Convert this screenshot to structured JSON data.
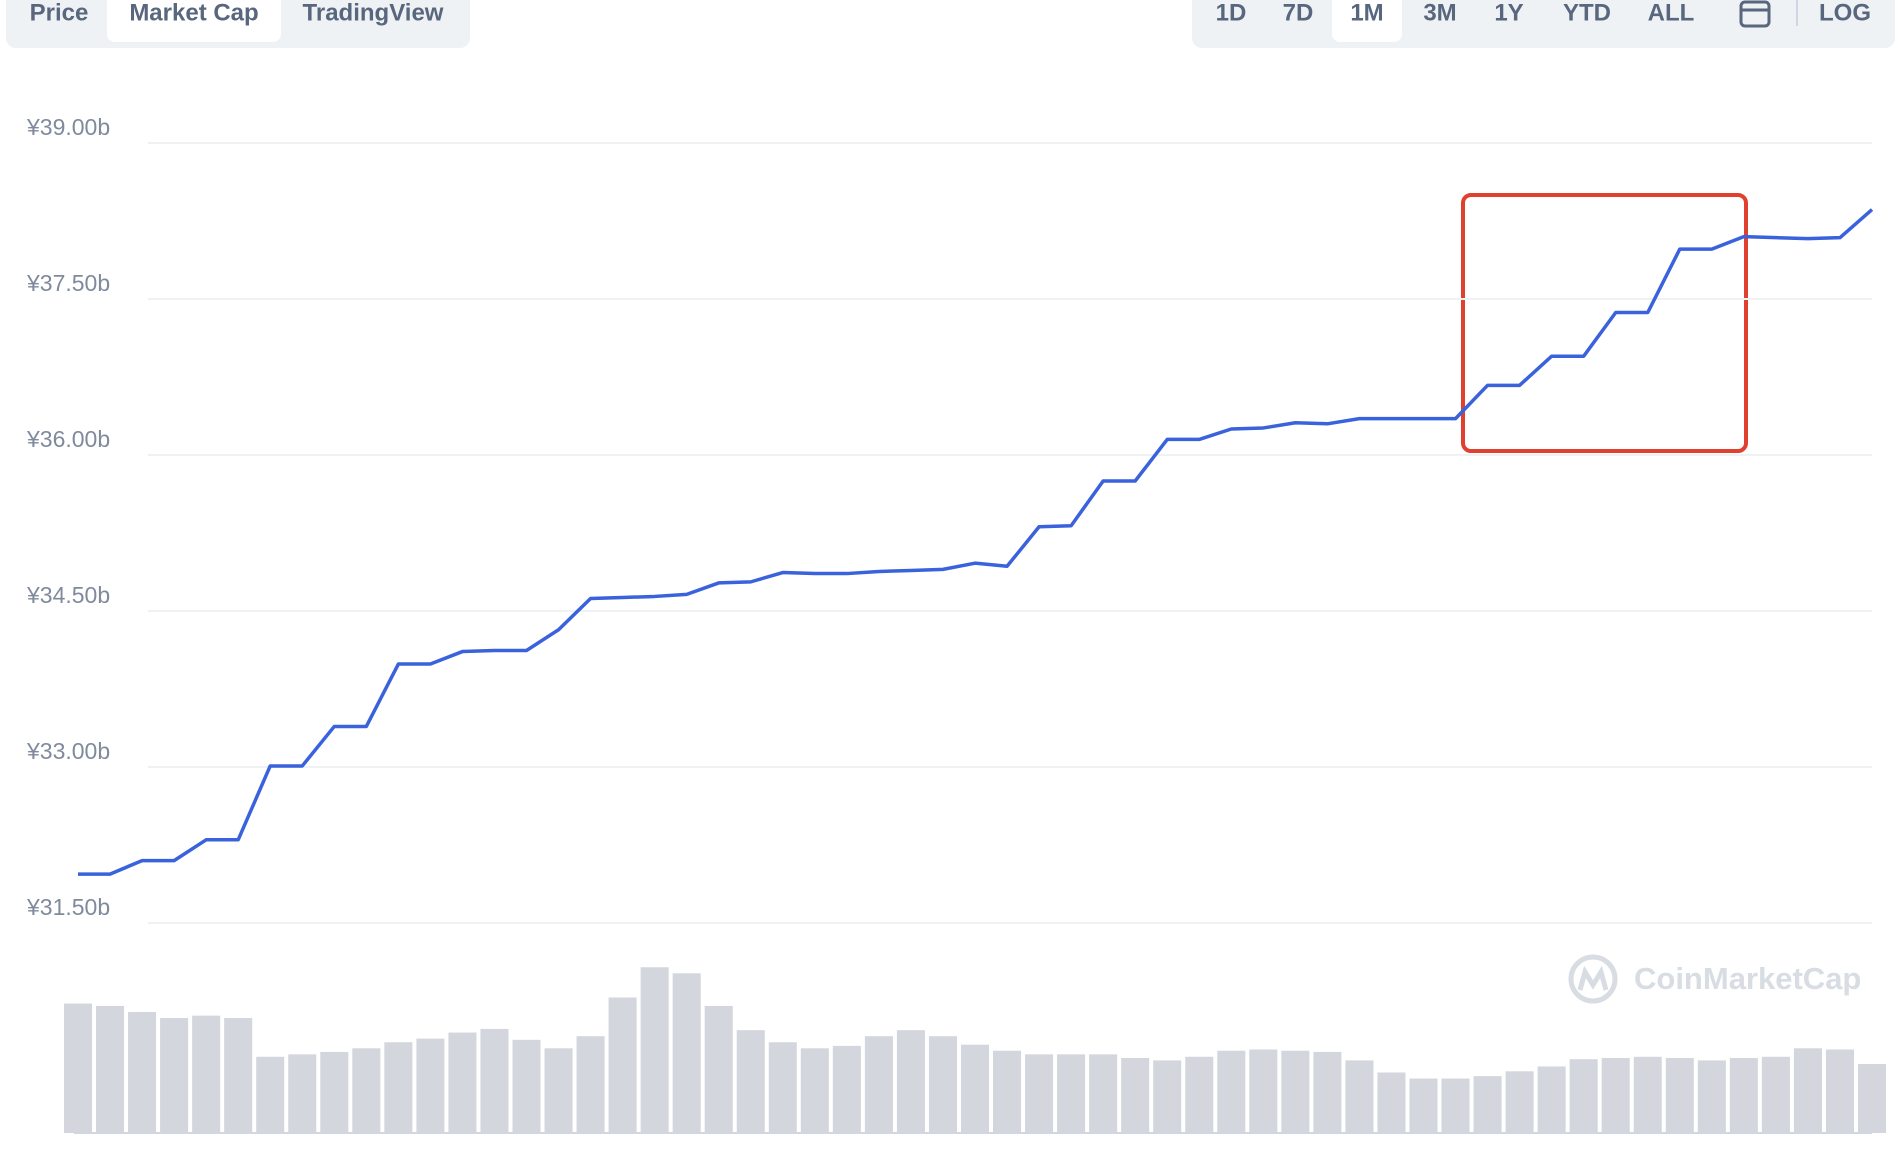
{
  "ui": {
    "tabs": [
      "Price",
      "Market Cap",
      "TradingView"
    ],
    "active_tab": 1,
    "ranges": [
      "1D",
      "7D",
      "1M",
      "3M",
      "1Y",
      "YTD",
      "ALL"
    ],
    "active_range": 2,
    "log_label": "LOG",
    "watermark": "CoinMarketCap"
  },
  "chart_data": {
    "type": "line",
    "ylim": [
      31.5,
      39
    ],
    "yticks": [
      {
        "value": 39,
        "label": "¥39.00b"
      },
      {
        "value": 37.5,
        "label": "¥37.50b"
      },
      {
        "value": 36,
        "label": "¥36.00b"
      },
      {
        "value": 34.5,
        "label": "¥34.50b"
      },
      {
        "value": 33,
        "label": "¥33.00b"
      },
      {
        "value": 31.5,
        "label": "¥31.50b"
      }
    ],
    "grid": true,
    "series": [
      {
        "color": "#3a62dc",
        "values": [
          31.97,
          31.97,
          32.1,
          32.1,
          32.3,
          32.3,
          33.01,
          33.01,
          33.39,
          33.39,
          33.99,
          33.99,
          34.11,
          34.12,
          34.12,
          34.32,
          34.62,
          34.63,
          34.64,
          34.66,
          34.77,
          34.78,
          34.87,
          34.86,
          34.86,
          34.88,
          34.89,
          34.9,
          34.96,
          34.93,
          35.31,
          35.32,
          35.75,
          35.75,
          36.15,
          36.15,
          36.25,
          36.26,
          36.31,
          36.3,
          36.35,
          36.35,
          36.35,
          36.35,
          36.67,
          36.67,
          36.95,
          36.95,
          37.37,
          37.37,
          37.98,
          37.98,
          38.1,
          38.09,
          38.08,
          38.09,
          38.36
        ]
      }
    ],
    "volume": {
      "color": "#d3d6dc",
      "values": [
        107,
        105,
        100,
        95,
        97,
        95,
        63,
        65,
        67,
        70,
        75,
        78,
        83,
        86,
        77,
        70,
        80,
        112,
        137,
        132,
        105,
        85,
        75,
        70,
        72,
        80,
        85,
        80,
        73,
        68,
        65,
        65,
        65,
        62,
        60,
        63,
        68,
        69,
        68,
        67,
        60,
        50,
        45,
        45,
        47,
        51,
        55,
        61,
        62,
        63,
        62,
        60,
        62,
        63,
        70,
        69,
        57
      ]
    }
  }
}
